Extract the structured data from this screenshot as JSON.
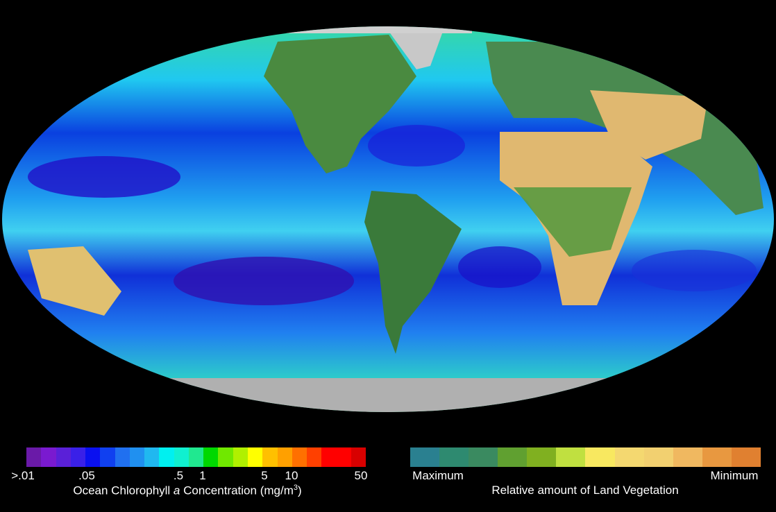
{
  "map": {
    "projection": "Mollweide",
    "ocean_palette": [
      "#1a10c8",
      "#0a40f0",
      "#2090f0",
      "#20c8f0",
      "#30f0c0",
      "#60f060"
    ],
    "land_palette": [
      "#3a7a4a",
      "#60a030",
      "#d8c070",
      "#e8b060"
    ],
    "ice_color": "#c8c8c8"
  },
  "legend_chlorophyll": {
    "title_pre": "Ocean Chlorophyll ",
    "title_italic": "a",
    "title_post": " Concentration (mg/m",
    "title_sup": "3",
    "title_end": ")",
    "ticks": [
      ">.01",
      ".05",
      ".5",
      "1",
      "5",
      "10",
      "50"
    ],
    "colors": [
      "#6a1aa8",
      "#7a1ad0",
      "#5a20d8",
      "#3a20e8",
      "#0a10f0",
      "#1040f0",
      "#2070f0",
      "#2090f0",
      "#20b8f0",
      "#00f0f0",
      "#10f0d0",
      "#20e890",
      "#00d800",
      "#70e800",
      "#b0f000",
      "#ffff00",
      "#ffc000",
      "#ffa000",
      "#ff7000",
      "#ff4000",
      "#ff0000",
      "#ff0000",
      "#d80000"
    ]
  },
  "legend_vegetation": {
    "title": "Relative amount of Land Vegetation",
    "min_label": "Minimum",
    "max_label": "Maximum",
    "colors": [
      "#2a8090",
      "#2e8a70",
      "#3a8a60",
      "#60a030",
      "#80b020",
      "#c0e040",
      "#f8e860",
      "#f4d870",
      "#f2d070",
      "#f0b860",
      "#e89840",
      "#e08030"
    ]
  }
}
